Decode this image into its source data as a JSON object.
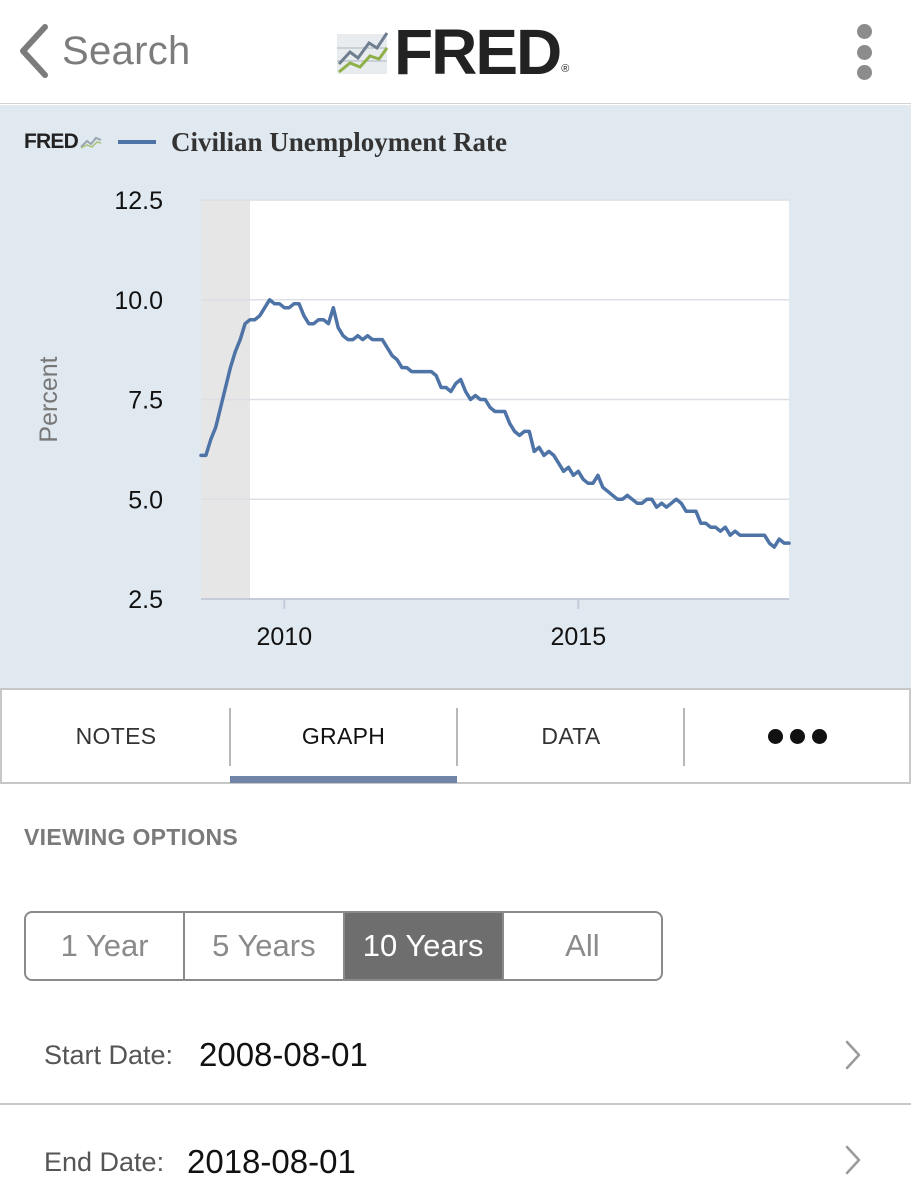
{
  "nav": {
    "back_label": "Search",
    "logo_text": "FRED",
    "logo_reg": "®",
    "menu_icon": "kebab-menu-icon"
  },
  "chart_header": {
    "mini_logo": "FRED",
    "title": "Civilian Unemployment Rate"
  },
  "chart_data": {
    "type": "line",
    "title": "Civilian Unemployment Rate",
    "xlabel": "",
    "ylabel": "Percent",
    "ylim": [
      2.5,
      12.5
    ],
    "yticks": [
      "12.5",
      "10.0",
      "7.5",
      "5.0",
      "2.5"
    ],
    "xticks": [
      "2010",
      "2015"
    ],
    "x_range": [
      "2008-08-01",
      "2018-08-01"
    ],
    "recession_shading": [
      "2008-08-01",
      "2009-06-01"
    ],
    "series": [
      {
        "name": "Civilian Unemployment Rate",
        "color": "#4e73a6",
        "dates": [
          "2008-08",
          "2008-09",
          "2008-10",
          "2008-11",
          "2008-12",
          "2009-01",
          "2009-02",
          "2009-03",
          "2009-04",
          "2009-05",
          "2009-06",
          "2009-07",
          "2009-08",
          "2009-09",
          "2009-10",
          "2009-11",
          "2009-12",
          "2010-01",
          "2010-02",
          "2010-03",
          "2010-04",
          "2010-05",
          "2010-06",
          "2010-07",
          "2010-08",
          "2010-09",
          "2010-10",
          "2010-11",
          "2010-12",
          "2011-01",
          "2011-02",
          "2011-03",
          "2011-04",
          "2011-05",
          "2011-06",
          "2011-07",
          "2011-08",
          "2011-09",
          "2011-10",
          "2011-11",
          "2011-12",
          "2012-01",
          "2012-02",
          "2012-03",
          "2012-04",
          "2012-05",
          "2012-06",
          "2012-07",
          "2012-08",
          "2012-09",
          "2012-10",
          "2012-11",
          "2012-12",
          "2013-01",
          "2013-02",
          "2013-03",
          "2013-04",
          "2013-05",
          "2013-06",
          "2013-07",
          "2013-08",
          "2013-09",
          "2013-10",
          "2013-11",
          "2013-12",
          "2014-01",
          "2014-02",
          "2014-03",
          "2014-04",
          "2014-05",
          "2014-06",
          "2014-07",
          "2014-08",
          "2014-09",
          "2014-10",
          "2014-11",
          "2014-12",
          "2015-01",
          "2015-02",
          "2015-03",
          "2015-04",
          "2015-05",
          "2015-06",
          "2015-07",
          "2015-08",
          "2015-09",
          "2015-10",
          "2015-11",
          "2015-12",
          "2016-01",
          "2016-02",
          "2016-03",
          "2016-04",
          "2016-05",
          "2016-06",
          "2016-07",
          "2016-08",
          "2016-09",
          "2016-10",
          "2016-11",
          "2016-12",
          "2017-01",
          "2017-02",
          "2017-03",
          "2017-04",
          "2017-05",
          "2017-06",
          "2017-07",
          "2017-08",
          "2017-09",
          "2017-10",
          "2017-11",
          "2017-12",
          "2018-01",
          "2018-02",
          "2018-03",
          "2018-04",
          "2018-05",
          "2018-06",
          "2018-07",
          "2018-08"
        ],
        "values": [
          6.1,
          6.1,
          6.5,
          6.8,
          7.3,
          7.8,
          8.3,
          8.7,
          9.0,
          9.4,
          9.5,
          9.5,
          9.6,
          9.8,
          10.0,
          9.9,
          9.9,
          9.8,
          9.8,
          9.9,
          9.9,
          9.6,
          9.4,
          9.4,
          9.5,
          9.5,
          9.4,
          9.8,
          9.3,
          9.1,
          9.0,
          9.0,
          9.1,
          9.0,
          9.1,
          9.0,
          9.0,
          9.0,
          8.8,
          8.6,
          8.5,
          8.3,
          8.3,
          8.2,
          8.2,
          8.2,
          8.2,
          8.2,
          8.1,
          7.8,
          7.8,
          7.7,
          7.9,
          8.0,
          7.7,
          7.5,
          7.6,
          7.5,
          7.5,
          7.3,
          7.2,
          7.2,
          7.2,
          6.9,
          6.7,
          6.6,
          6.7,
          6.7,
          6.2,
          6.3,
          6.1,
          6.2,
          6.1,
          5.9,
          5.7,
          5.8,
          5.6,
          5.7,
          5.5,
          5.4,
          5.4,
          5.6,
          5.3,
          5.2,
          5.1,
          5.0,
          5.0,
          5.1,
          5.0,
          4.9,
          4.9,
          5.0,
          5.0,
          4.8,
          4.9,
          4.8,
          4.9,
          5.0,
          4.9,
          4.7,
          4.7,
          4.7,
          4.4,
          4.4,
          4.3,
          4.3,
          4.2,
          4.3,
          4.1,
          4.2,
          4.1,
          4.1,
          4.1,
          4.1,
          4.1,
          4.1,
          3.9,
          3.8,
          4.0,
          3.9,
          3.9
        ]
      }
    ]
  },
  "tabs": [
    {
      "label": "NOTES"
    },
    {
      "label": "GRAPH"
    },
    {
      "label": "DATA"
    },
    {
      "label": "more-dots-icon"
    }
  ],
  "viewing_options": {
    "label": "VIEWING OPTIONS",
    "ranges": [
      "1 Year",
      "5 Years",
      "10 Years",
      "All"
    ],
    "selected": "10 Years"
  },
  "start_date": {
    "label": "Start Date:",
    "value": "2008-08-01"
  },
  "end_date": {
    "label": "End Date:",
    "value": "2018-08-01"
  }
}
